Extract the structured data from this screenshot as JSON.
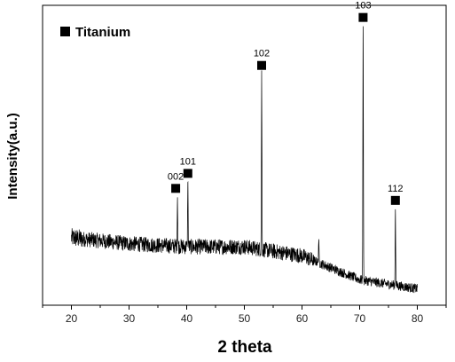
{
  "chart_data": {
    "type": "line",
    "xlabel": "2 theta",
    "ylabel": "Intensity(a.u.)",
    "xlim": [
      15,
      85
    ],
    "ylim": [
      0,
      100
    ],
    "xticks": [
      20,
      30,
      40,
      50,
      60,
      70,
      80
    ],
    "yticks": [],
    "grid": false,
    "legend": {
      "position": "top-left",
      "entries": [
        {
          "name": "Titanium",
          "marker": "square",
          "color": "#000000"
        }
      ]
    },
    "baseline": [
      {
        "x": 20,
        "y": 22.5
      },
      {
        "x": 30,
        "y": 20.5
      },
      {
        "x": 40,
        "y": 19.5
      },
      {
        "x": 50,
        "y": 19.5
      },
      {
        "x": 60,
        "y": 16.5
      },
      {
        "x": 70,
        "y": 8.5
      },
      {
        "x": 80,
        "y": 5.5
      }
    ],
    "peaks": [
      {
        "label": "002",
        "x": 38.4,
        "y": 36
      },
      {
        "label": "101",
        "x": 40.2,
        "y": 41
      },
      {
        "label": "102",
        "x": 53.0,
        "y": 77
      },
      {
        "label": "",
        "x": 62.9,
        "y": 22
      },
      {
        "label": "103",
        "x": 70.6,
        "y": 93
      },
      {
        "label": "112",
        "x": 76.2,
        "y": 32
      }
    ],
    "line_color": "#000000"
  }
}
